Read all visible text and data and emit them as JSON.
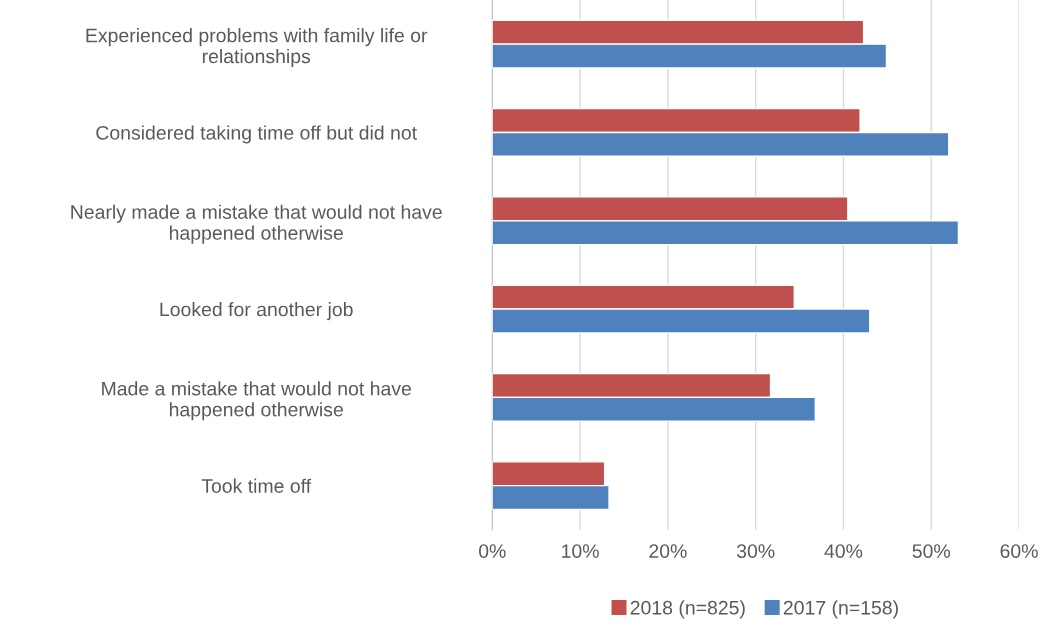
{
  "chart_data": {
    "type": "bar",
    "orientation": "horizontal",
    "categories": [
      "Experienced problems with family life or\nrelationships",
      "Considered taking time off but did not",
      "Nearly made a mistake that would not have\nhappened otherwise",
      "Looked for another job",
      "Made a mistake that would not have\nhappened otherwise",
      "Took time off"
    ],
    "series": [
      {
        "name": "2018 (n=825)",
        "color": "#c0504d",
        "values": [
          42.3,
          41.9,
          40.5,
          34.4,
          31.7,
          12.8
        ]
      },
      {
        "name": "2017 (n=158)",
        "color": "#4f81bd",
        "values": [
          44.9,
          52.0,
          53.1,
          43.0,
          36.8,
          13.3
        ]
      }
    ],
    "xlim": [
      0,
      60
    ],
    "xticks": [
      {
        "value": 0,
        "label": "0%"
      },
      {
        "value": 10,
        "label": "10%"
      },
      {
        "value": 20,
        "label": "20%"
      },
      {
        "value": 30,
        "label": "30%"
      },
      {
        "value": 40,
        "label": "40%"
      },
      {
        "value": 50,
        "label": "50%"
      },
      {
        "value": 60,
        "label": "60%"
      }
    ],
    "grid": "x",
    "legend": "bottom"
  }
}
